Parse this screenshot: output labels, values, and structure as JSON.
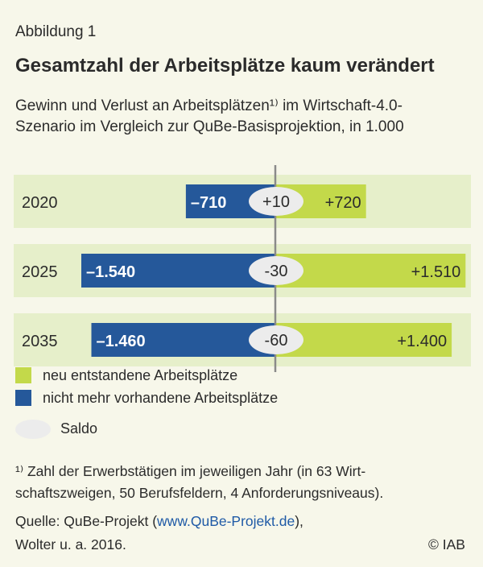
{
  "figure_label": "Abbildung 1",
  "title": "Gesamtzahl der Arbeitsplätze kaum verändert",
  "subtitle_line1": "Gewinn und Verlust an Arbeitsplätzen¹⁾ im Wirtschaft-4.0-",
  "subtitle_line2": "Szenario im Vergleich zur QuBe-Basisprojektion, in 1.000",
  "colors": {
    "gain": "#c3d94a",
    "loss": "#25589a",
    "band": "#e6efca",
    "saldo": "#ececec",
    "axis": "#8a8a8a"
  },
  "chart_data": {
    "type": "bar",
    "orientation": "horizontal-diverging",
    "categories": [
      "2020",
      "2025",
      "2035"
    ],
    "series": [
      {
        "name": "neu entstandene Arbeitsplätze",
        "values": [
          720,
          1510,
          1400
        ],
        "labels": [
          "+720",
          "+1.510",
          "+1.400"
        ]
      },
      {
        "name": "nicht mehr vorhandene Arbeitsplätze",
        "values": [
          -710,
          -1540,
          -1460
        ],
        "labels": [
          "–710",
          "–1.540",
          "–1.460"
        ]
      },
      {
        "name": "Saldo",
        "values": [
          10,
          -30,
          -60
        ],
        "labels": [
          "+10",
          "-30",
          "-60"
        ]
      }
    ]
  },
  "legend": {
    "gain": "neu entstandene Arbeitsplätze",
    "loss": "nicht mehr vorhandene Arbeitsplätze",
    "saldo": "Saldo"
  },
  "footnote_line1": "¹⁾ Zahl der Erwerbstätigen im jeweiligen Jahr (in 63 Wirt-",
  "footnote_line2": "schaftszweigen, 50 Berufsfeldern, 4 Anforderungsniveaus).",
  "source_prefix": "Quelle: QuBe-Projekt (",
  "source_link": "www.QuBe-Projekt.de",
  "source_suffix": "),",
  "source_line2": "Wolter u. a. 2016.",
  "copyright": "© IAB"
}
